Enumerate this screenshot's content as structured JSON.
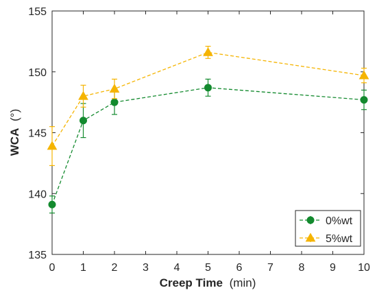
{
  "chart_data": {
    "type": "line",
    "xlabel_bold": "Creep Time",
    "xlabel_unit": "(min)",
    "ylabel_bold": "WCA",
    "ylabel_unit": "(°)",
    "xlim": [
      0,
      10
    ],
    "ylim": [
      135,
      155
    ],
    "xticks": [
      0,
      1,
      2,
      3,
      4,
      5,
      6,
      7,
      8,
      9,
      10
    ],
    "yticks": [
      135,
      140,
      145,
      150,
      155
    ],
    "grid": false,
    "legend_position": "bottom-right",
    "series": [
      {
        "name": "0%wt",
        "color": "#138a2e",
        "marker": "circle",
        "x": [
          0,
          1,
          2,
          5,
          10
        ],
        "y": [
          139.1,
          146.0,
          147.5,
          148.7,
          147.7
        ],
        "err": [
          0.7,
          1.4,
          1.0,
          0.7,
          0.8
        ]
      },
      {
        "name": "5%wt",
        "color": "#f5b400",
        "marker": "triangle",
        "x": [
          0,
          1,
          2,
          5,
          10
        ],
        "y": [
          143.9,
          148.0,
          148.6,
          151.6,
          149.7
        ],
        "err": [
          1.6,
          0.9,
          0.8,
          0.5,
          0.6
        ]
      }
    ]
  }
}
